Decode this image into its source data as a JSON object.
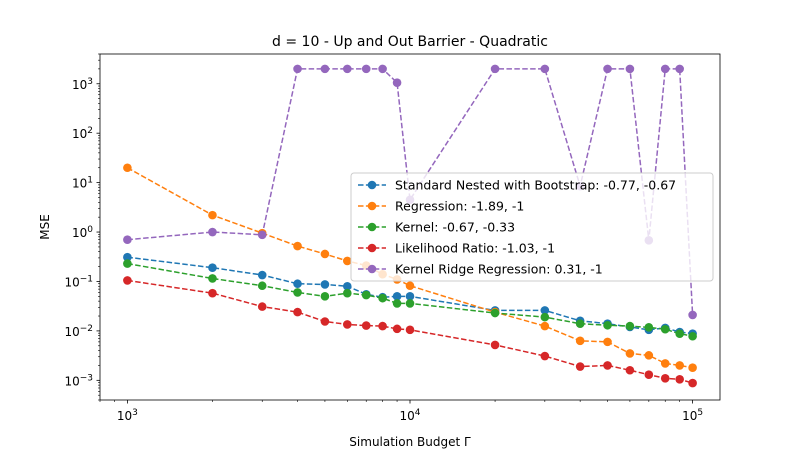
{
  "chart_data": {
    "type": "line",
    "title": "d = 10 - Up and Out Barrier - Quadratic",
    "xlabel": "Simulation Budget Γ",
    "ylabel": "MSE",
    "xscale": "log",
    "yscale": "log",
    "xlim": [
      800,
      125000
    ],
    "ylim": [
      0.0004,
      4000
    ],
    "grid": false,
    "legend_position": "right",
    "x_ticks": [
      {
        "value": 1000,
        "base": "10",
        "exp": "3"
      },
      {
        "value": 10000,
        "base": "10",
        "exp": "4"
      },
      {
        "value": 100000,
        "base": "10",
        "exp": "5"
      }
    ],
    "y_ticks": [
      {
        "value": 0.001,
        "base": "10",
        "exp": "−3"
      },
      {
        "value": 0.01,
        "base": "10",
        "exp": "−2"
      },
      {
        "value": 0.1,
        "base": "10",
        "exp": "−1"
      },
      {
        "value": 1,
        "base": "10",
        "exp": "0"
      },
      {
        "value": 10,
        "base": "10",
        "exp": "1"
      },
      {
        "value": 100,
        "base": "10",
        "exp": "2"
      },
      {
        "value": 1000,
        "base": "10",
        "exp": "3"
      }
    ],
    "series": [
      {
        "name": "Standard Nested with Bootstrap: -0.77, -0.67",
        "color": "#1f77b4",
        "x": [
          1000,
          2000,
          3000,
          4000,
          5000,
          6000,
          7000,
          8000,
          9000,
          10000,
          20000,
          30000,
          40000,
          50000,
          60000,
          70000,
          80000,
          90000,
          100000
        ],
        "y": [
          0.31,
          0.19,
          0.135,
          0.09,
          0.087,
          0.08,
          0.055,
          0.048,
          0.05,
          0.05,
          0.026,
          0.026,
          0.016,
          0.014,
          0.012,
          0.0105,
          0.0115,
          0.0095,
          0.0088
        ]
      },
      {
        "name": "Regression: -1.89, -1",
        "color": "#ff7f0e",
        "x": [
          1000,
          2000,
          3000,
          4000,
          5000,
          6000,
          7000,
          8000,
          9000,
          10000,
          20000,
          30000,
          40000,
          50000,
          60000,
          70000,
          80000,
          90000,
          100000
        ],
        "y": [
          20,
          2.2,
          0.95,
          0.52,
          0.36,
          0.26,
          0.21,
          0.14,
          0.11,
          0.082,
          0.024,
          0.0125,
          0.0063,
          0.006,
          0.0035,
          0.0032,
          0.0022,
          0.002,
          0.0018
        ]
      },
      {
        "name": "Kernel: -0.67, -0.33",
        "color": "#2ca02c",
        "x": [
          1000,
          2000,
          3000,
          4000,
          5000,
          6000,
          7000,
          8000,
          9000,
          10000,
          20000,
          30000,
          40000,
          50000,
          60000,
          70000,
          80000,
          90000,
          100000
        ],
        "y": [
          0.23,
          0.115,
          0.082,
          0.06,
          0.05,
          0.058,
          0.053,
          0.046,
          0.036,
          0.036,
          0.023,
          0.019,
          0.014,
          0.013,
          0.0125,
          0.0118,
          0.0108,
          0.0088,
          0.0078
        ]
      },
      {
        "name": "Likelihood Ratio: -1.03, -1",
        "color": "#d62728",
        "x": [
          1000,
          2000,
          3000,
          4000,
          5000,
          6000,
          7000,
          8000,
          9000,
          10000,
          20000,
          30000,
          40000,
          50000,
          60000,
          70000,
          80000,
          90000,
          100000
        ],
        "y": [
          0.105,
          0.058,
          0.031,
          0.024,
          0.0155,
          0.0135,
          0.0128,
          0.0125,
          0.011,
          0.0105,
          0.0052,
          0.0031,
          0.0019,
          0.002,
          0.0016,
          0.0013,
          0.0011,
          0.00105,
          0.00088
        ]
      },
      {
        "name": "Kernel Ridge Regression: 0.31, -1",
        "color": "#9467bd",
        "x": [
          1000,
          2000,
          3000,
          4000,
          5000,
          6000,
          7000,
          8000,
          9000,
          10000,
          20000,
          30000,
          40000,
          50000,
          60000,
          70000,
          80000,
          90000,
          100000
        ],
        "y": [
          0.7,
          1.0,
          0.88,
          2000,
          2000,
          2000,
          2000,
          2000,
          1050,
          4.5,
          2000,
          2000,
          8.5,
          2000,
          2000,
          0.68,
          2000,
          2000,
          0.021
        ]
      }
    ]
  }
}
